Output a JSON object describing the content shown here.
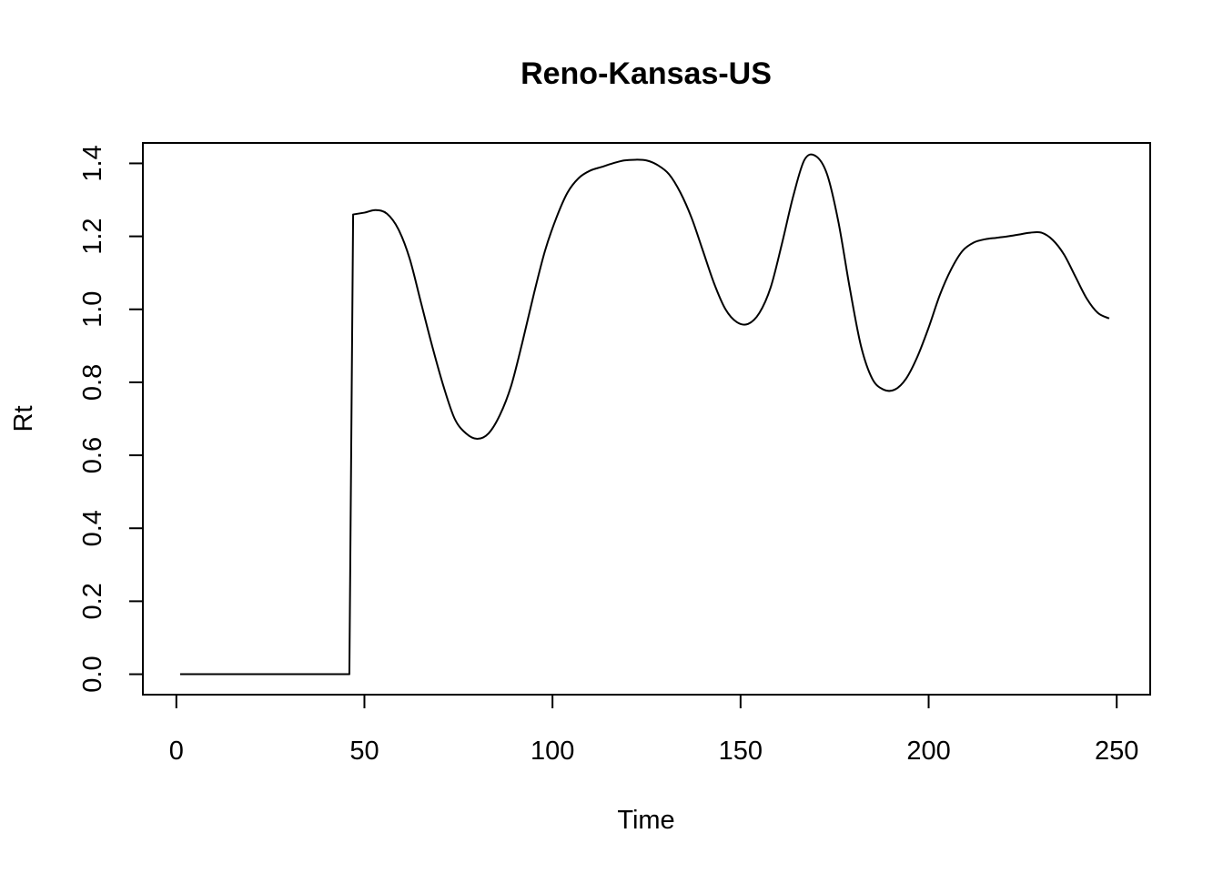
{
  "chart_data": {
    "type": "line",
    "title": "Reno-Kansas-US",
    "xlabel": "Time",
    "ylabel": "Rt",
    "xlim": [
      -8.9,
      258.9
    ],
    "ylim": [
      -0.056,
      1.456
    ],
    "xticks": [
      0,
      50,
      100,
      150,
      200,
      250
    ],
    "yticks": [
      0.0,
      0.2,
      0.4,
      0.6,
      0.8,
      1.0,
      1.2,
      1.4
    ],
    "xtick_labels": [
      "0",
      "50",
      "100",
      "150",
      "200",
      "250"
    ],
    "ytick_labels": [
      "0.0",
      "0.2",
      "0.4",
      "0.6",
      "0.8",
      "1.0",
      "1.2",
      "1.4"
    ],
    "grid": false,
    "legend": "none",
    "line_color": "#000000",
    "series": [
      {
        "x": [
          1,
          46,
          47,
          50,
          53,
          56,
          59,
          62,
          65,
          68,
          71,
          74,
          77,
          80,
          83,
          86,
          89,
          92,
          95,
          98,
          101,
          104,
          107,
          110,
          113,
          116,
          119,
          122,
          125,
          128,
          131,
          134,
          137,
          140,
          143,
          146,
          149,
          152,
          155,
          158,
          161,
          164,
          167,
          170,
          173,
          176,
          179,
          182,
          185,
          188,
          191,
          194,
          197,
          200,
          203,
          206,
          209,
          212,
          215,
          218,
          221,
          224,
          227,
          230,
          233,
          236,
          239,
          242,
          245,
          248
        ],
        "y": [
          0.0,
          0.0,
          1.26,
          1.265,
          1.272,
          1.262,
          1.22,
          1.14,
          1.02,
          0.9,
          0.79,
          0.7,
          0.66,
          0.645,
          0.66,
          0.71,
          0.79,
          0.91,
          1.04,
          1.16,
          1.25,
          1.32,
          1.36,
          1.38,
          1.39,
          1.4,
          1.408,
          1.41,
          1.408,
          1.395,
          1.37,
          1.32,
          1.25,
          1.16,
          1.07,
          1.0,
          0.965,
          0.96,
          0.99,
          1.06,
          1.18,
          1.31,
          1.41,
          1.42,
          1.37,
          1.24,
          1.06,
          0.9,
          0.81,
          0.78,
          0.78,
          0.81,
          0.87,
          0.95,
          1.04,
          1.11,
          1.16,
          1.183,
          1.192,
          1.196,
          1.2,
          1.205,
          1.21,
          1.21,
          1.19,
          1.15,
          1.09,
          1.03,
          0.99,
          0.975
        ]
      }
    ]
  }
}
